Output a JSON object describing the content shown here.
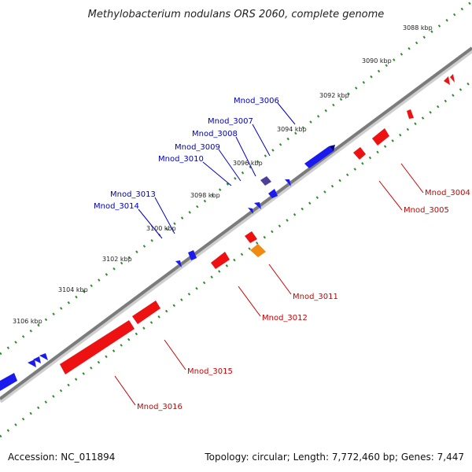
{
  "title": "Methylobacterium nodulans ORS 2060, complete genome",
  "ticks": [
    "3088 kbp",
    "3090 kbp",
    "3092 kbp",
    "3094 kbp",
    "3096 kbp",
    "3098 kbp",
    "3100 kbp",
    "3102 kbp",
    "3104 kbp",
    "3106 kbp"
  ],
  "genes": {
    "plus": [
      "Mnod_3006",
      "Mnod_3007",
      "Mnod_3008",
      "Mnod_3009",
      "Mnod_3010",
      "Mnod_3013",
      "Mnod_3014"
    ],
    "minus": [
      "Mnod_3004",
      "Mnod_3005",
      "Mnod_3011",
      "Mnod_3012",
      "Mnod_3015",
      "Mnod_3016"
    ]
  },
  "footer": {
    "accession": "Accession: NC_011894",
    "topology": "Topology: circular; Length: 7,772,460 bp; Genes: 7,447"
  },
  "colors": {
    "plus_strand": "#1a1aee",
    "minus_strand": "#ee1111",
    "highlight_plus": "#4a3f99",
    "highlight_minus": "#f08a10",
    "backbone": "#808080",
    "tick_marks": "#2e8b2e"
  }
}
